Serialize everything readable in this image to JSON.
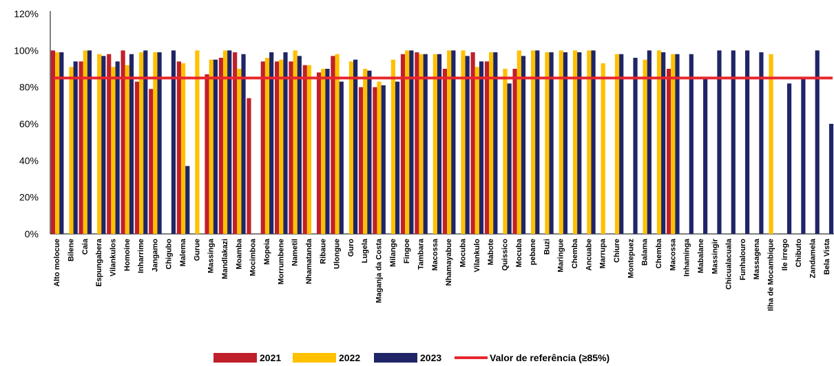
{
  "chart_data": {
    "type": "bar",
    "ylim": [
      0,
      120
    ],
    "ytick_labels": [
      "0%",
      "20%",
      "40%",
      "60%",
      "80%",
      "100%",
      "120%"
    ],
    "yticks": [
      0,
      20,
      40,
      60,
      80,
      100,
      120
    ],
    "grid": false,
    "legend_position": "bottom",
    "colors": {
      "2021": "#c0202a",
      "2022": "#ffc000",
      "2023": "#1f2566",
      "reference": "#e8262e"
    },
    "categories": [
      "Alto molocue",
      "Bilene",
      "Caia",
      "Espungabera",
      "Vilankulos",
      "Homoine",
      "Inharrime",
      "Jangamo",
      "Chigubo",
      "Malema",
      "Gurue",
      "Massinga",
      "Mandlakazi",
      "Moamba",
      "Mocimboa",
      "Mopeia",
      "Morrumbene",
      "Nametil",
      "Nhamatanda",
      "Ribaue",
      "Ulongue",
      "Guro",
      "Lugela",
      "Maganja da Costa",
      "Milange",
      "Fingoe",
      "Tambara",
      "Macossa",
      "Nhamayabue",
      "Mocuba",
      "Vilankulo",
      "Mabote",
      "Quissico",
      "Mocuba",
      "pebane",
      "Buzi",
      "Maringue",
      "Chemba",
      "Ancuabe",
      "Marrupa",
      "Chiure",
      "Montepuez",
      "Balama",
      "Chemba",
      "Macossa",
      "Inhaminga",
      "Mabalane",
      "Massingir",
      "Chicualacuala",
      "Funhalouro",
      "Massagena",
      "Ilha de Mocambique",
      "Ile irrego",
      "Chibuto",
      "Zandamela",
      "Bela Vista"
    ],
    "series": [
      {
        "name": "2021",
        "values": [
          100,
          null,
          94,
          null,
          98,
          100,
          83,
          79,
          null,
          94,
          null,
          87,
          96,
          99,
          74,
          94,
          94,
          94,
          92,
          88,
          97,
          null,
          80,
          80,
          null,
          98,
          99,
          null,
          90,
          null,
          99,
          94,
          null,
          90,
          null,
          null,
          null,
          null,
          null,
          null,
          null,
          null,
          null,
          null,
          90,
          null,
          null,
          null,
          null,
          null,
          null,
          null,
          null,
          null,
          null,
          null
        ]
      },
      {
        "name": "2022",
        "values": [
          99,
          91,
          100,
          98,
          91,
          92,
          99,
          99,
          null,
          93,
          100,
          95,
          100,
          90,
          null,
          96,
          95,
          100,
          92,
          90,
          98,
          94,
          90,
          83,
          95,
          100,
          98,
          98,
          100,
          100,
          91,
          99,
          90,
          100,
          100,
          99,
          100,
          100,
          100,
          93,
          98,
          null,
          95,
          100,
          98,
          null,
          null,
          null,
          null,
          null,
          null,
          98,
          null,
          null,
          null,
          null
        ]
      },
      {
        "name": "2023",
        "values": [
          99,
          94,
          100,
          97,
          94,
          98,
          100,
          99,
          100,
          37,
          null,
          95,
          100,
          98,
          null,
          99,
          99,
          97,
          null,
          90,
          83,
          95,
          89,
          81,
          83,
          100,
          98,
          98,
          100,
          97,
          94,
          99,
          82,
          97,
          100,
          99,
          99,
          99,
          100,
          null,
          98,
          96,
          100,
          99,
          98,
          98,
          85,
          100,
          100,
          100,
          99,
          null,
          82,
          85,
          100,
          60
        ]
      }
    ],
    "reference": {
      "name": "Valor de referência (≥85%)",
      "value": 85
    }
  }
}
